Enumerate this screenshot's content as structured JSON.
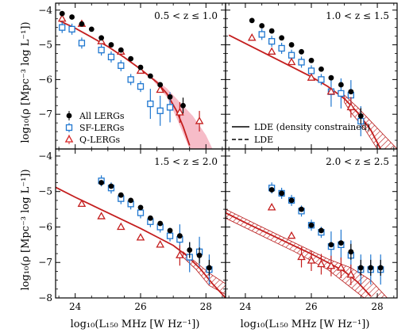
{
  "chart_data": {
    "type": "scatter",
    "xlabel": "log₁₀(L₁₅₀ MHz [W Hz⁻¹])",
    "ylabel": "log₁₀(ρ [Mpc⁻³ log L⁻¹])",
    "xlim": [
      23.4,
      28.6
    ],
    "ylim": [
      -8,
      -3.8
    ],
    "xticks": [
      "24",
      "26",
      "28"
    ],
    "yticks": [
      "−4",
      "−5",
      "−6",
      "−7",
      "−8"
    ],
    "legend_series": [
      {
        "name": "All LERGs",
        "marker": "filled-circle",
        "color": "#000000"
      },
      {
        "name": "SF-LERGs",
        "marker": "open-square",
        "color": "#1f77d0"
      },
      {
        "name": "Q-LERGs",
        "marker": "open-triangle",
        "color": "#d62728"
      }
    ],
    "legend_models": [
      {
        "name": "LDE (density constrained)",
        "style": "solid"
      },
      {
        "name": "LDE",
        "style": "dashed"
      }
    ],
    "panels": [
      {
        "zlabel": "0.5 < z ≤ 1.0",
        "band": "shaded",
        "all": [
          [
            23.6,
            -4.1
          ],
          [
            23.9,
            -4.2
          ],
          [
            24.2,
            -4.4
          ],
          [
            24.5,
            -4.55
          ],
          [
            24.8,
            -4.8
          ],
          [
            25.1,
            -5.0
          ],
          [
            25.4,
            -5.15
          ],
          [
            25.7,
            -5.4
          ],
          [
            26.0,
            -5.65
          ],
          [
            26.3,
            -5.9
          ],
          [
            26.6,
            -6.15
          ],
          [
            26.9,
            -6.5
          ],
          [
            27.3,
            -6.75
          ]
        ],
        "sf": [
          [
            23.6,
            -4.5
          ],
          [
            23.9,
            -4.55
          ],
          [
            24.2,
            -4.95
          ],
          [
            24.8,
            -5.15
          ],
          [
            25.1,
            -5.35
          ],
          [
            25.4,
            -5.6
          ],
          [
            25.7,
            -6.0
          ],
          [
            26.0,
            -6.2
          ],
          [
            26.3,
            -6.7
          ],
          [
            26.6,
            -6.9
          ],
          [
            26.9,
            -6.8
          ]
        ],
        "q": [
          [
            23.6,
            -4.25
          ],
          [
            24.2,
            -4.4
          ],
          [
            24.8,
            -4.9
          ],
          [
            25.4,
            -5.2
          ],
          [
            26.0,
            -5.75
          ],
          [
            26.6,
            -6.3
          ],
          [
            27.2,
            -6.95
          ],
          [
            27.8,
            -7.2
          ]
        ],
        "model": [
          [
            23.5,
            -4.3
          ],
          [
            24.0,
            -4.52
          ],
          [
            24.5,
            -4.78
          ],
          [
            25.0,
            -5.05
          ],
          [
            25.5,
            -5.36
          ],
          [
            26.0,
            -5.7
          ],
          [
            26.5,
            -6.08
          ],
          [
            26.8,
            -6.4
          ],
          [
            27.1,
            -6.9
          ],
          [
            27.3,
            -7.35
          ],
          [
            27.5,
            -7.9
          ]
        ],
        "band_hi": [
          [
            26.4,
            -5.95
          ],
          [
            26.8,
            -6.25
          ],
          [
            27.2,
            -6.65
          ],
          [
            27.6,
            -7.05
          ],
          [
            28.0,
            -7.6
          ],
          [
            28.2,
            -8.0
          ]
        ],
        "band_lo": [
          [
            27.5,
            -8.0
          ],
          [
            27.1,
            -7.1
          ],
          [
            26.8,
            -6.5
          ],
          [
            26.4,
            -6.05
          ]
        ]
      },
      {
        "zlabel": "1.0 < z ≤ 1.5",
        "band": "hatched",
        "all": [
          [
            24.2,
            -4.3
          ],
          [
            24.5,
            -4.45
          ],
          [
            24.8,
            -4.6
          ],
          [
            25.1,
            -4.8
          ],
          [
            25.4,
            -5.0
          ],
          [
            25.7,
            -5.2
          ],
          [
            26.0,
            -5.45
          ],
          [
            26.3,
            -5.7
          ],
          [
            26.6,
            -5.95
          ],
          [
            26.9,
            -6.15
          ],
          [
            27.2,
            -6.35
          ],
          [
            27.5,
            -7.05
          ]
        ],
        "sf": [
          [
            24.5,
            -4.7
          ],
          [
            24.8,
            -4.9
          ],
          [
            25.1,
            -5.1
          ],
          [
            25.4,
            -5.3
          ],
          [
            25.7,
            -5.5
          ],
          [
            26.0,
            -5.75
          ],
          [
            26.3,
            -6.0
          ],
          [
            26.6,
            -6.35
          ],
          [
            26.9,
            -6.4
          ],
          [
            27.2,
            -6.45
          ],
          [
            27.5,
            -7.2
          ]
        ],
        "q": [
          [
            24.2,
            -4.8
          ],
          [
            24.8,
            -5.2
          ],
          [
            25.4,
            -5.5
          ],
          [
            26.0,
            -5.95
          ],
          [
            26.6,
            -6.35
          ],
          [
            27.2,
            -6.8
          ]
        ],
        "model": [
          [
            23.5,
            -4.72
          ],
          [
            24.0,
            -4.96
          ],
          [
            24.5,
            -5.2
          ],
          [
            25.0,
            -5.44
          ],
          [
            25.5,
            -5.68
          ],
          [
            26.0,
            -5.92
          ],
          [
            26.5,
            -6.2
          ],
          [
            27.0,
            -6.55
          ],
          [
            27.4,
            -6.95
          ],
          [
            27.8,
            -7.45
          ],
          [
            28.1,
            -8.0
          ]
        ],
        "band_hi": [
          [
            27.0,
            -6.45
          ],
          [
            27.4,
            -6.8
          ],
          [
            27.8,
            -7.2
          ],
          [
            28.2,
            -7.6
          ],
          [
            28.6,
            -8.0
          ]
        ],
        "band_lo": [
          [
            28.0,
            -8.0
          ],
          [
            27.6,
            -7.4
          ],
          [
            27.2,
            -6.95
          ],
          [
            27.0,
            -6.65
          ]
        ]
      },
      {
        "zlabel": "1.5 < z ≤ 2.0",
        "band": "hatched",
        "all": [
          [
            24.8,
            -4.75
          ],
          [
            25.1,
            -4.85
          ],
          [
            25.4,
            -5.1
          ],
          [
            25.7,
            -5.25
          ],
          [
            26.0,
            -5.45
          ],
          [
            26.3,
            -5.75
          ],
          [
            26.6,
            -5.9
          ],
          [
            26.9,
            -6.1
          ],
          [
            27.2,
            -6.25
          ],
          [
            27.5,
            -6.65
          ],
          [
            27.8,
            -6.8
          ],
          [
            28.1,
            -7.15
          ]
        ],
        "sf": [
          [
            24.8,
            -4.7
          ],
          [
            25.1,
            -4.9
          ],
          [
            25.4,
            -5.2
          ],
          [
            25.7,
            -5.35
          ],
          [
            26.0,
            -5.6
          ],
          [
            26.3,
            -5.85
          ],
          [
            26.6,
            -6.0
          ],
          [
            26.9,
            -6.25
          ],
          [
            27.2,
            -6.35
          ],
          [
            27.5,
            -6.85
          ],
          [
            27.8,
            -6.7
          ],
          [
            28.1,
            -7.2
          ]
        ],
        "q": [
          [
            24.2,
            -5.35
          ],
          [
            24.8,
            -5.7
          ],
          [
            25.4,
            -6.0
          ],
          [
            26.0,
            -6.3
          ],
          [
            26.6,
            -6.5
          ],
          [
            27.2,
            -6.8
          ]
        ],
        "model": [
          [
            23.4,
            -4.88
          ],
          [
            24.0,
            -5.16
          ],
          [
            24.5,
            -5.38
          ],
          [
            25.0,
            -5.6
          ],
          [
            25.5,
            -5.82
          ],
          [
            26.0,
            -6.04
          ],
          [
            26.5,
            -6.28
          ],
          [
            27.0,
            -6.52
          ],
          [
            27.4,
            -6.8
          ],
          [
            27.8,
            -7.15
          ],
          [
            28.2,
            -7.6
          ],
          [
            28.6,
            -8.0
          ]
        ],
        "band_hi": [
          [
            27.3,
            -6.7
          ],
          [
            27.7,
            -7.0
          ],
          [
            28.1,
            -7.3
          ],
          [
            28.6,
            -7.6
          ]
        ],
        "band_lo": [
          [
            28.6,
            -7.9
          ],
          [
            28.1,
            -7.65
          ],
          [
            27.7,
            -7.2
          ],
          [
            27.3,
            -6.85
          ]
        ]
      },
      {
        "zlabel": "2.0 < z ≤ 2.5",
        "band": "hatched",
        "all": [
          [
            24.8,
            -4.95
          ],
          [
            25.1,
            -5.05
          ],
          [
            25.4,
            -5.25
          ],
          [
            25.7,
            -5.5
          ],
          [
            26.0,
            -5.95
          ],
          [
            26.3,
            -6.1
          ],
          [
            26.6,
            -6.5
          ],
          [
            26.9,
            -6.45
          ],
          [
            27.2,
            -6.7
          ],
          [
            27.5,
            -7.15
          ],
          [
            27.8,
            -7.15
          ],
          [
            28.1,
            -7.15
          ]
        ],
        "sf": [
          [
            24.8,
            -4.9
          ],
          [
            25.1,
            -5.05
          ],
          [
            25.4,
            -5.25
          ],
          [
            25.7,
            -5.55
          ],
          [
            26.0,
            -5.95
          ],
          [
            26.3,
            -6.15
          ],
          [
            26.6,
            -6.55
          ],
          [
            26.9,
            -6.5
          ],
          [
            27.2,
            -6.8
          ],
          [
            27.5,
            -7.2
          ],
          [
            27.8,
            -7.2
          ],
          [
            28.1,
            -7.2
          ]
        ],
        "q": [
          [
            24.8,
            -5.45
          ],
          [
            25.4,
            -6.25
          ],
          [
            25.7,
            -6.85
          ],
          [
            26.0,
            -6.95
          ],
          [
            26.3,
            -7.05
          ],
          [
            26.6,
            -7.1
          ],
          [
            26.9,
            -7.15
          ],
          [
            27.2,
            -7.35
          ]
        ],
        "model": [
          [
            23.4,
            -5.6
          ],
          [
            24.0,
            -5.88
          ],
          [
            24.5,
            -6.1
          ],
          [
            25.0,
            -6.32
          ],
          [
            25.5,
            -6.54
          ],
          [
            26.0,
            -6.76
          ],
          [
            26.5,
            -7.0
          ],
          [
            27.0,
            -7.25
          ],
          [
            27.4,
            -7.55
          ],
          [
            27.8,
            -7.95
          ]
        ],
        "band_hi": [
          [
            23.4,
            -5.5
          ],
          [
            24.5,
            -6.0
          ],
          [
            25.5,
            -6.45
          ],
          [
            26.5,
            -6.9
          ],
          [
            27.2,
            -7.15
          ],
          [
            27.8,
            -7.5
          ],
          [
            28.3,
            -8.0
          ]
        ],
        "band_lo": [
          [
            27.6,
            -8.0
          ],
          [
            26.5,
            -7.2
          ],
          [
            25.5,
            -6.7
          ],
          [
            24.5,
            -6.25
          ],
          [
            23.4,
            -5.75
          ]
        ]
      }
    ]
  }
}
